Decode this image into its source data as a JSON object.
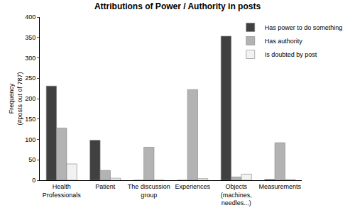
{
  "chart_data": {
    "type": "bar",
    "title": "Attributions of Power / Authority in posts",
    "y_label": "Frequency\n(#posts out of 787)",
    "categories": [
      "Health Professionals",
      "Patient",
      "The discussion group",
      "Experiences",
      "Objects (machines, needles...)",
      "Measurements"
    ],
    "series": [
      {
        "name": "Has power to do something",
        "color": "#404040",
        "values": [
          231,
          98,
          0,
          0,
          353,
          2
        ]
      },
      {
        "name": "Has authority",
        "color": "#b3b3b3",
        "values": [
          128,
          24,
          81,
          222,
          8,
          92
        ]
      },
      {
        "name": "Is doubted by post",
        "color": "#f2f2f2",
        "values": [
          40,
          5,
          0,
          4,
          15,
          2
        ]
      }
    ],
    "ylim": [
      0,
      400
    ],
    "yticks": [
      0,
      50,
      100,
      150,
      200,
      250,
      300,
      350,
      400
    ],
    "grid": false,
    "legend": "top-right"
  }
}
